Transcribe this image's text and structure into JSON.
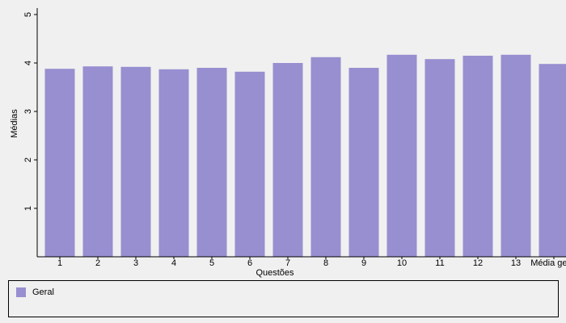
{
  "chart_data": {
    "type": "bar",
    "x_label": "Questões",
    "y_label": "Médias",
    "categories": [
      "1",
      "2",
      "3",
      "4",
      "5",
      "6",
      "7",
      "8",
      "9",
      "10",
      "11",
      "12",
      "13",
      "Média geral"
    ],
    "series": [
      {
        "name": "Geral",
        "color": "#978fd0",
        "values": [
          3.88,
          3.93,
          3.92,
          3.87,
          3.9,
          3.82,
          4.0,
          4.12,
          3.9,
          4.17,
          4.08,
          4.15,
          4.17,
          3.98
        ]
      }
    ],
    "ylim": [
      0,
      5
    ],
    "yticks": [
      1,
      2,
      3,
      4,
      5
    ],
    "grid": false,
    "legend": "bottom"
  }
}
